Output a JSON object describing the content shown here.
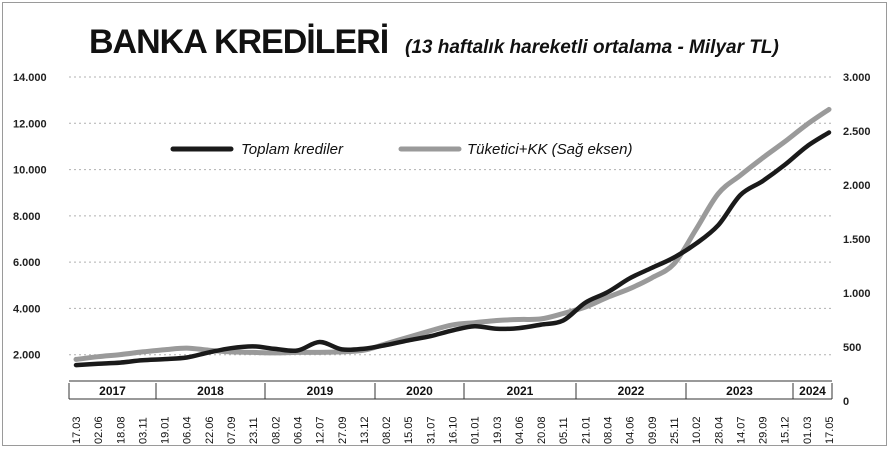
{
  "chart_data": {
    "type": "line",
    "title": "BANKA KREDİLERİ",
    "subtitle": "(13 haftalık hareketli ortalama - Milyar TL)",
    "left_axis": {
      "min": 0,
      "max": 14000,
      "ticks": [
        "2.000",
        "4.000",
        "6.000",
        "8.000",
        "10.000",
        "12.000",
        "14.000"
      ],
      "tick_values": [
        2000,
        4000,
        6000,
        8000,
        10000,
        12000,
        14000
      ]
    },
    "right_axis": {
      "min": 0,
      "max": 3000,
      "ticks": [
        "0",
        "500",
        "1.000",
        "1.500",
        "2.000",
        "2.500",
        "3.000"
      ],
      "tick_values": [
        0,
        500,
        1000,
        1500,
        2000,
        2500,
        3000
      ]
    },
    "grid": true,
    "legend_position": "top-left",
    "years": [
      "2017",
      "2018",
      "2019",
      "2020",
      "2021",
      "2022",
      "2023",
      "2024"
    ],
    "x_labels": [
      "17.03",
      "02.06",
      "18.08",
      "03.11",
      "19.01",
      "06.04",
      "22.06",
      "07.09",
      "23.11",
      "08.02",
      "06.04",
      "12.07",
      "27.09",
      "13.12",
      "08.02",
      "15.05",
      "31.07",
      "16.10",
      "01.01",
      "19.03",
      "04.06",
      "20.08",
      "05.11",
      "21.01",
      "08.04",
      "04.06",
      "09.09",
      "25.11",
      "10.02",
      "28.04",
      "14.07",
      "29.09",
      "15.12",
      "01.03",
      "17.05"
    ],
    "series": [
      {
        "name": "Toplam krediler",
        "axis": "left",
        "color": "#1a1a1a",
        "values": [
          1550,
          1610,
          1660,
          1760,
          1810,
          1880,
          2100,
          2280,
          2360,
          2250,
          2180,
          2550,
          2230,
          2260,
          2420,
          2620,
          2800,
          3050,
          3230,
          3120,
          3150,
          3300,
          3480,
          4250,
          4700,
          5300,
          5750,
          6200,
          6800,
          7600,
          8900,
          9500,
          10200,
          11000,
          11600
        ]
      },
      {
        "name": "Tüketici+KK (Sağ eksen)",
        "axis": "right",
        "color": "#9a9a9a",
        "values": [
          385,
          410,
          430,
          455,
          475,
          490,
          470,
          455,
          450,
          445,
          450,
          450,
          455,
          470,
          530,
          590,
          650,
          705,
          725,
          745,
          755,
          760,
          810,
          870,
          960,
          1040,
          1140,
          1270,
          1590,
          1920,
          2090,
          2250,
          2400,
          2560,
          2700
        ]
      }
    ]
  }
}
